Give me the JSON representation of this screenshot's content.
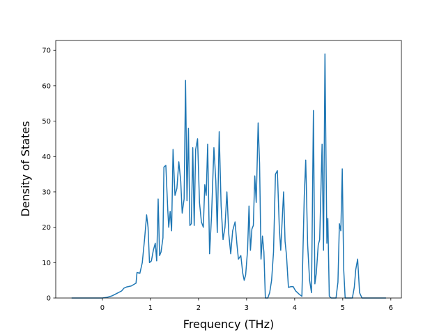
{
  "chart_data": {
    "type": "line",
    "xlabel": "Frequency (THz)",
    "ylabel": "Density of States",
    "xlim": [
      -0.97,
      6.22
    ],
    "ylim": [
      0,
      72.8
    ],
    "xticks": [
      0,
      1,
      2,
      3,
      4,
      5,
      6
    ],
    "yticks": [
      0,
      10,
      20,
      30,
      40,
      50,
      60,
      70
    ],
    "color": "#1f77b4",
    "x": [
      -0.64,
      0,
      0.1,
      0.2,
      0.3,
      0.4,
      0.45,
      0.5,
      0.6,
      0.7,
      0.72,
      0.78,
      0.83,
      0.88,
      0.92,
      0.95,
      0.98,
      1.02,
      1.06,
      1.1,
      1.13,
      1.16,
      1.19,
      1.22,
      1.26,
      1.28,
      1.32,
      1.36,
      1.38,
      1.41,
      1.44,
      1.47,
      1.51,
      1.55,
      1.59,
      1.63,
      1.66,
      1.7,
      1.73,
      1.76,
      1.79,
      1.82,
      1.85,
      1.88,
      1.91,
      1.94,
      1.98,
      2.02,
      2.06,
      2.1,
      2.13,
      2.16,
      2.19,
      2.23,
      2.27,
      2.32,
      2.36,
      2.39,
      2.43,
      2.47,
      2.51,
      2.55,
      2.59,
      2.63,
      2.67,
      2.71,
      2.76,
      2.8,
      2.83,
      2.88,
      2.92,
      2.95,
      2.98,
      3.02,
      3.05,
      3.08,
      3.11,
      3.14,
      3.17,
      3.2,
      3.24,
      3.27,
      3.3,
      3.33,
      3.36,
      3.39,
      3.44,
      3.48,
      3.52,
      3.56,
      3.6,
      3.64,
      3.68,
      3.71,
      3.74,
      3.77,
      3.8,
      3.83,
      3.87,
      3.92,
      3.97,
      4.02,
      4.1,
      4.15,
      4.2,
      4.23,
      4.27,
      4.31,
      4.35,
      4.39,
      4.42,
      4.45,
      4.49,
      4.52,
      4.57,
      4.6,
      4.63,
      4.67,
      4.69,
      4.72,
      4.76,
      4.86,
      4.9,
      4.93,
      4.96,
      4.99,
      5.02,
      5.05,
      5.2,
      5.24,
      5.27,
      5.31,
      5.35,
      5.4,
      5.9
    ],
    "values": [
      0,
      0,
      0.2,
      0.6,
      1.3,
      2,
      2.8,
      3.1,
      3.4,
      4.2,
      7.2,
      7,
      10,
      17,
      23.5,
      20,
      10,
      10.5,
      13.5,
      15.5,
      10.5,
      28,
      12,
      13,
      17,
      37,
      37.5,
      25,
      20,
      24.5,
      19,
      42,
      29,
      31,
      38.5,
      33,
      24,
      28,
      61.5,
      27.5,
      48,
      20.5,
      21,
      42.5,
      20.5,
      42,
      45,
      27,
      21.5,
      20,
      32,
      29,
      43.5,
      12.5,
      23,
      42.5,
      33,
      18.5,
      47,
      26,
      16.5,
      20,
      30,
      18,
      12.5,
      19,
      21.5,
      15,
      11,
      12,
      7,
      5,
      6.5,
      13.5,
      26,
      13.5,
      19.5,
      20.5,
      34.5,
      27,
      49.5,
      38,
      11,
      17.5,
      13,
      0,
      0,
      1.5,
      5,
      13,
      35,
      36,
      20,
      13.5,
      22,
      30,
      16,
      12,
      3,
      3.2,
      3.2,
      2,
      1,
      0.5,
      29,
      39,
      15,
      5,
      1.5,
      53,
      4,
      7,
      15,
      16.5,
      43.5,
      13.5,
      69,
      15.5,
      22.5,
      0.5,
      0,
      0,
      4.5,
      21,
      19,
      36.5,
      8,
      0,
      0,
      3,
      8,
      11,
      1.5,
      0,
      0
    ]
  }
}
